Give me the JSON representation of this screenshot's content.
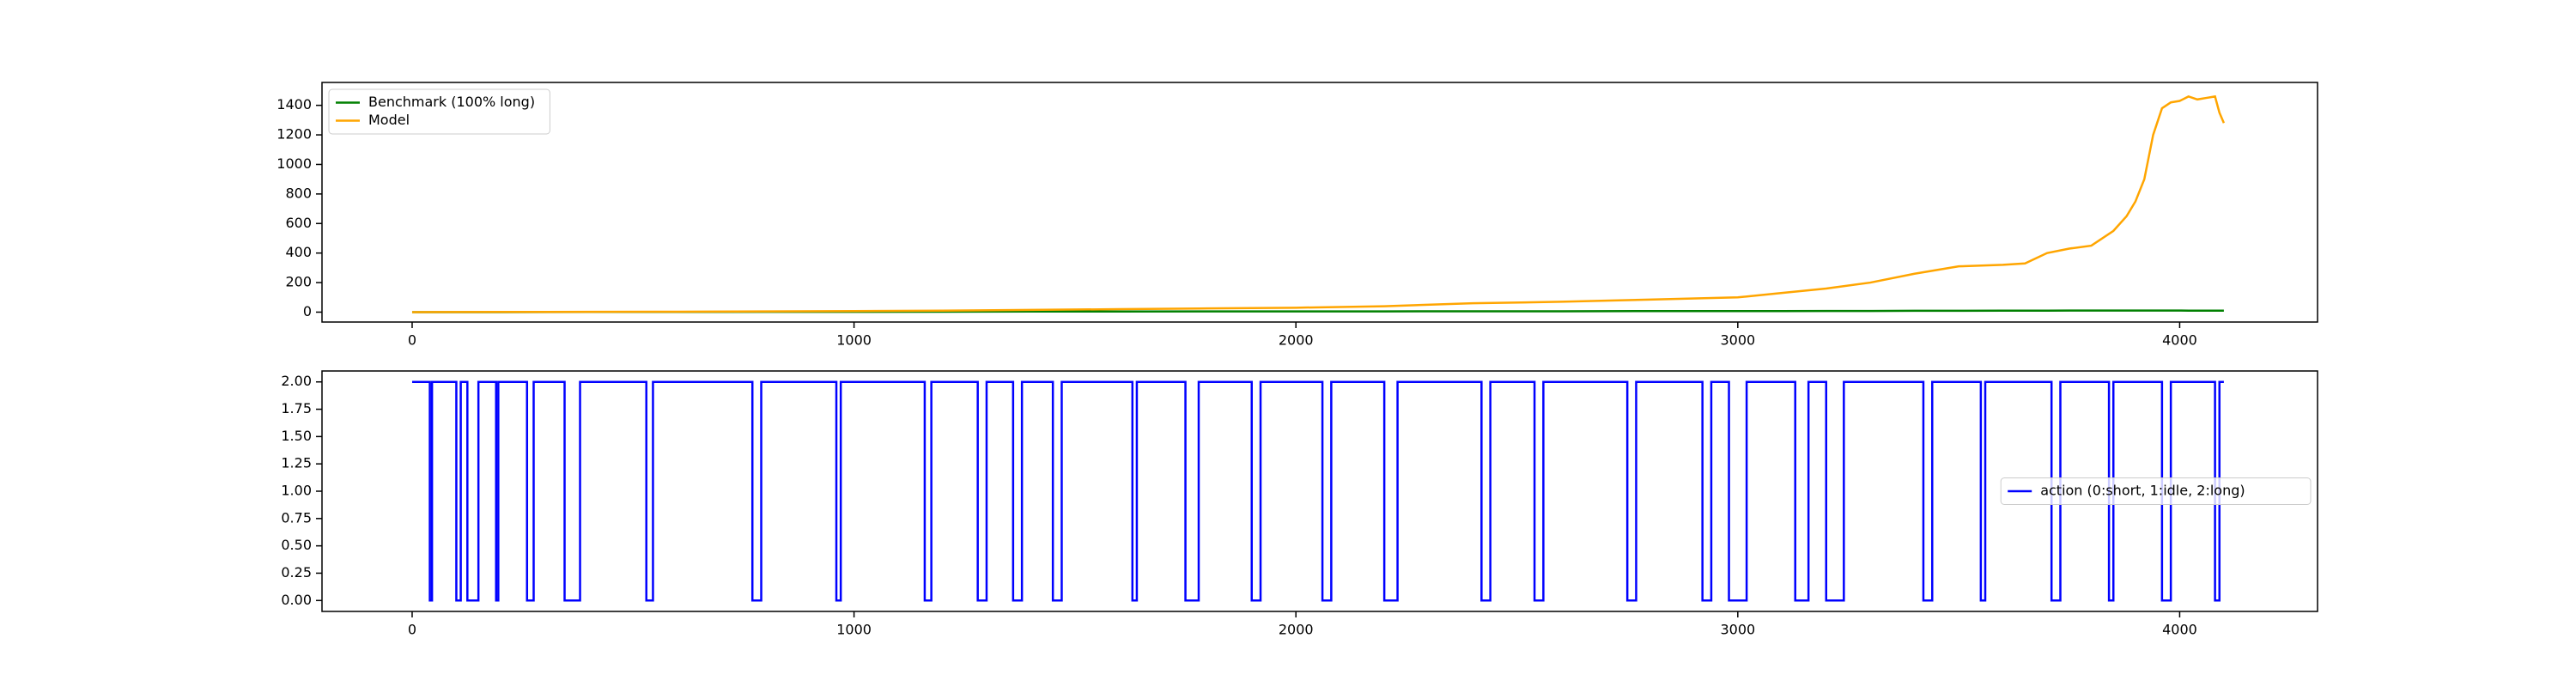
{
  "chart_data": [
    {
      "type": "line",
      "legend": "upper left",
      "grid": false,
      "x": [
        0,
        200,
        400,
        600,
        800,
        1000,
        1200,
        1400,
        1600,
        1800,
        2000,
        2200,
        2400,
        2600,
        2800,
        3000,
        3100,
        3200,
        3300,
        3400,
        3500,
        3600,
        3650,
        3700,
        3750,
        3800,
        3850,
        3880,
        3900,
        3920,
        3940,
        3960,
        3980,
        4000,
        4020,
        4040,
        4060,
        4080,
        4090,
        4100
      ],
      "series": [
        {
          "name": "Benchmark (100% long)",
          "color": "#008000",
          "values": [
            0,
            0,
            1,
            1,
            2,
            2,
            3,
            4,
            4,
            5,
            5,
            5,
            6,
            6,
            7,
            7,
            7,
            8,
            8,
            9,
            9,
            10,
            10,
            10,
            11,
            11,
            11,
            11,
            11,
            11,
            11,
            11,
            11,
            11,
            10,
            10,
            10,
            10,
            10,
            10
          ]
        },
        {
          "name": "Model",
          "color": "#ffa500",
          "values": [
            0,
            1,
            2,
            3,
            5,
            7,
            10,
            15,
            20,
            25,
            30,
            40,
            60,
            70,
            85,
            100,
            130,
            160,
            200,
            260,
            310,
            320,
            330,
            400,
            430,
            450,
            550,
            650,
            750,
            900,
            1200,
            1380,
            1420,
            1430,
            1460,
            1440,
            1450,
            1460,
            1350,
            1280
          ]
        }
      ],
      "xlim": [
        -204,
        4312
      ],
      "ylim": [
        -67,
        1555
      ],
      "xticks": [
        0,
        1000,
        2000,
        3000,
        4000
      ],
      "yticks": [
        0,
        200,
        400,
        600,
        800,
        1000,
        1200,
        1400
      ]
    },
    {
      "type": "line",
      "legend": "center right",
      "grid": false,
      "x": [
        0,
        40,
        40,
        45,
        45,
        100,
        100,
        110,
        110,
        125,
        125,
        150,
        150,
        190,
        190,
        195,
        195,
        260,
        260,
        275,
        275,
        345,
        345,
        380,
        380,
        530,
        530,
        545,
        545,
        770,
        770,
        790,
        790,
        960,
        960,
        970,
        970,
        1160,
        1160,
        1175,
        1175,
        1280,
        1280,
        1300,
        1300,
        1360,
        1360,
        1380,
        1380,
        1450,
        1450,
        1470,
        1470,
        1630,
        1630,
        1640,
        1640,
        1750,
        1750,
        1780,
        1780,
        1900,
        1900,
        1920,
        1920,
        2060,
        2060,
        2080,
        2080,
        2200,
        2200,
        2230,
        2230,
        2420,
        2420,
        2440,
        2440,
        2540,
        2540,
        2560,
        2560,
        2750,
        2750,
        2770,
        2770,
        2920,
        2920,
        2940,
        2940,
        2980,
        2980,
        3020,
        3020,
        3130,
        3130,
        3160,
        3160,
        3200,
        3200,
        3240,
        3240,
        3420,
        3420,
        3440,
        3440,
        3550,
        3550,
        3560,
        3560,
        3710,
        3710,
        3730,
        3730,
        3840,
        3840,
        3850,
        3850,
        3960,
        3960,
        3980,
        3980,
        4080,
        4080,
        4090,
        4090,
        4100
      ],
      "series": [
        {
          "name": "action (0:short, 1:idle, 2:long)",
          "color": "#0000ff",
          "values": [
            2,
            2,
            0,
            0,
            2,
            2,
            0,
            0,
            2,
            2,
            0,
            0,
            2,
            2,
            0,
            0,
            2,
            2,
            0,
            0,
            2,
            2,
            0,
            0,
            2,
            2,
            0,
            0,
            2,
            2,
            0,
            0,
            2,
            2,
            0,
            0,
            2,
            2,
            0,
            0,
            2,
            2,
            0,
            0,
            2,
            2,
            0,
            0,
            2,
            2,
            0,
            0,
            2,
            2,
            0,
            0,
            2,
            2,
            0,
            0,
            2,
            2,
            0,
            0,
            2,
            2,
            0,
            0,
            2,
            2,
            0,
            0,
            2,
            2,
            0,
            0,
            2,
            2,
            0,
            0,
            2,
            2,
            0,
            0,
            2,
            2,
            0,
            0,
            2,
            2,
            0,
            0,
            2,
            2,
            0,
            0,
            2,
            2,
            0,
            0,
            2,
            2,
            0,
            0,
            2,
            2,
            0,
            0,
            2,
            2,
            0,
            0,
            2,
            2,
            0,
            0,
            2,
            2,
            0,
            0,
            2,
            2,
            0,
            0,
            2,
            2
          ]
        }
      ],
      "xlim": [
        -204,
        4312
      ],
      "ylim": [
        -0.1,
        2.1
      ],
      "xticks": [
        0,
        1000,
        2000,
        3000,
        4000
      ],
      "yticks": [
        {
          "value": 0,
          "label": "0.00"
        },
        {
          "value": 0.25,
          "label": "0.25"
        },
        {
          "value": 0.5,
          "label": "0.50"
        },
        {
          "value": 0.75,
          "label": "0.75"
        },
        {
          "value": 1,
          "label": "1.00"
        },
        {
          "value": 1.25,
          "label": "1.25"
        },
        {
          "value": 1.5,
          "label": "1.50"
        },
        {
          "value": 1.75,
          "label": "1.75"
        },
        {
          "value": 2,
          "label": "2.00"
        }
      ]
    }
  ]
}
